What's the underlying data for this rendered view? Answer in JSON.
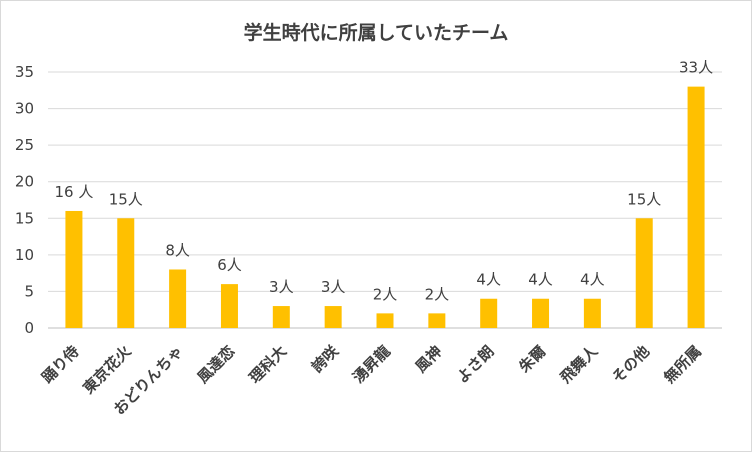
{
  "chart_data": {
    "type": "bar",
    "title": "学生時代に所属していたチーム",
    "xlabel": "",
    "ylabel": "",
    "ylim": [
      0,
      35
    ],
    "yticks": [
      0,
      5,
      10,
      15,
      20,
      25,
      30,
      35
    ],
    "grid": true,
    "legend": "none",
    "bar_color": "#FFC000",
    "categories": [
      "踊り侍",
      "東京花火",
      "おどりんちゃ",
      "風達恋",
      "理科大",
      "誇咲",
      "湧昇龍",
      "風神",
      "よさ朗",
      "朱爾",
      "飛舞人",
      "その他",
      "無所属"
    ],
    "values": [
      16,
      15,
      8,
      6,
      3,
      3,
      2,
      2,
      4,
      4,
      4,
      15,
      33
    ],
    "data_labels": [
      "16 人",
      "15人",
      "8人",
      "6人",
      "3人",
      "3人",
      "2人",
      "2人",
      "4人",
      "4人",
      "4人",
      "15人",
      "33人"
    ]
  }
}
